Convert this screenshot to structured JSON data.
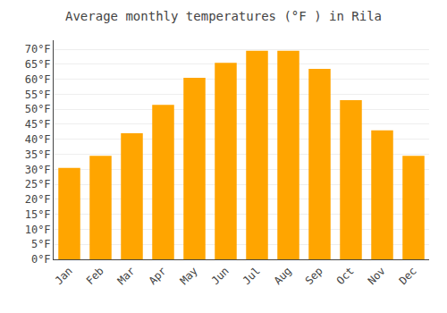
{
  "chart_data": {
    "type": "bar",
    "title": "Average monthly temperatures (°F ) in Rila",
    "categories": [
      "Jan",
      "Feb",
      "Mar",
      "Apr",
      "May",
      "Jun",
      "Jul",
      "Aug",
      "Sep",
      "Oct",
      "Nov",
      "Dec"
    ],
    "values": [
      30.5,
      34.5,
      42,
      51.5,
      60.5,
      65.5,
      69.5,
      69.5,
      63.5,
      53,
      43,
      34.5
    ],
    "color": "#FFA500",
    "ylim": [
      0,
      73
    ],
    "yticks": [
      {
        "value": 0,
        "label": "0°F"
      },
      {
        "value": 5,
        "label": "5°F"
      },
      {
        "value": 10,
        "label": "10°F"
      },
      {
        "value": 15,
        "label": "15°F"
      },
      {
        "value": 20,
        "label": "20°F"
      },
      {
        "value": 25,
        "label": "25°F"
      },
      {
        "value": 30,
        "label": "30°F"
      },
      {
        "value": 35,
        "label": "35°F"
      },
      {
        "value": 40,
        "label": "40°F"
      },
      {
        "value": 45,
        "label": "45°F"
      },
      {
        "value": 50,
        "label": "50°F"
      },
      {
        "value": 55,
        "label": "55°F"
      },
      {
        "value": 60,
        "label": "60°F"
      },
      {
        "value": 65,
        "label": "65°F"
      },
      {
        "value": 70,
        "label": "70°F"
      }
    ],
    "grid": true
  }
}
